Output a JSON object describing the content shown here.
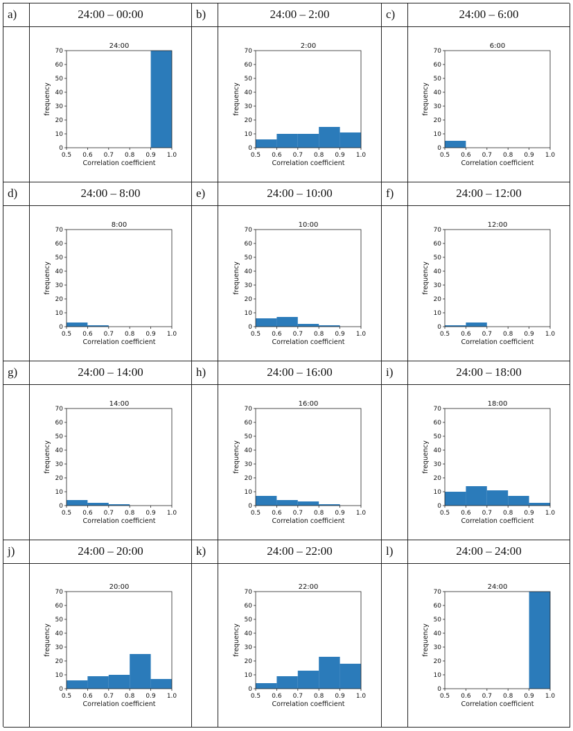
{
  "colors": {
    "bar": "#2b7bba",
    "axis": "#222222"
  },
  "panels": [
    {
      "letter": "a)",
      "title": "24:00 – 00:00"
    },
    {
      "letter": "b)",
      "title": "24:00 – 2:00"
    },
    {
      "letter": "c)",
      "title": "24:00 – 6:00"
    },
    {
      "letter": "d)",
      "title": "24:00 – 8:00"
    },
    {
      "letter": "e)",
      "title": "24:00 – 10:00"
    },
    {
      "letter": "f)",
      "title": "24:00 – 12:00"
    },
    {
      "letter": "g)",
      "title": "24:00 – 14:00"
    },
    {
      "letter": "h)",
      "title": "24:00 – 16:00"
    },
    {
      "letter": "i)",
      "title": "24:00 – 18:00"
    },
    {
      "letter": "j)",
      "title": "24:00 – 20:00"
    },
    {
      "letter": "k)",
      "title": "24:00 – 22:00"
    },
    {
      "letter": "l)",
      "title": "24:00 – 24:00"
    }
  ],
  "chart_data": [
    {
      "type": "bar",
      "title": "24:00",
      "xlabel": "Correlation coefficient",
      "ylabel": "frequency",
      "categories": [
        "0.5-0.6",
        "0.6-0.7",
        "0.7-0.8",
        "0.8-0.9",
        "0.9-1.0"
      ],
      "values": [
        0,
        0,
        0,
        0,
        70
      ],
      "xlim": [
        0.5,
        1.0
      ],
      "ylim": [
        0,
        70
      ],
      "xticks": [
        "0.5",
        "0.6",
        "0.7",
        "0.8",
        "0.9",
        "1.0"
      ],
      "yticks": [
        "0",
        "10",
        "20",
        "30",
        "40",
        "50",
        "60",
        "70"
      ]
    },
    {
      "type": "bar",
      "title": "2:00",
      "xlabel": "Correlation coefficient",
      "ylabel": "frequency",
      "categories": [
        "0.5-0.6",
        "0.6-0.7",
        "0.7-0.8",
        "0.8-0.9",
        "0.9-1.0"
      ],
      "values": [
        6,
        10,
        10,
        15,
        11
      ],
      "xlim": [
        0.5,
        1.0
      ],
      "ylim": [
        0,
        70
      ],
      "xticks": [
        "0.5",
        "0.6",
        "0.7",
        "0.8",
        "0.9",
        "1.0"
      ],
      "yticks": [
        "0",
        "10",
        "20",
        "30",
        "40",
        "50",
        "60",
        "70"
      ]
    },
    {
      "type": "bar",
      "title": "6:00",
      "xlabel": "Correlation coefficient",
      "ylabel": "frequency",
      "categories": [
        "0.5-0.6",
        "0.6-0.7",
        "0.7-0.8",
        "0.8-0.9",
        "0.9-1.0"
      ],
      "values": [
        5,
        0,
        0,
        0,
        0
      ],
      "xlim": [
        0.5,
        1.0
      ],
      "ylim": [
        0,
        70
      ],
      "xticks": [
        "0.5",
        "0.6",
        "0.7",
        "0.8",
        "0.9",
        "1.0"
      ],
      "yticks": [
        "0",
        "10",
        "20",
        "30",
        "40",
        "50",
        "60",
        "70"
      ]
    },
    {
      "type": "bar",
      "title": "8:00",
      "xlabel": "Correlation coefficient",
      "ylabel": "frequency",
      "categories": [
        "0.5-0.6",
        "0.6-0.7",
        "0.7-0.8",
        "0.8-0.9",
        "0.9-1.0"
      ],
      "values": [
        3,
        1,
        0,
        0,
        0
      ],
      "xlim": [
        0.5,
        1.0
      ],
      "ylim": [
        0,
        70
      ],
      "xticks": [
        "0.5",
        "0.6",
        "0.7",
        "0.8",
        "0.9",
        "1.0"
      ],
      "yticks": [
        "0",
        "10",
        "20",
        "30",
        "40",
        "50",
        "60",
        "70"
      ]
    },
    {
      "type": "bar",
      "title": "10:00",
      "xlabel": "Correlation coefficient",
      "ylabel": "frequency",
      "categories": [
        "0.5-0.6",
        "0.6-0.7",
        "0.7-0.8",
        "0.8-0.9",
        "0.9-1.0"
      ],
      "values": [
        6,
        7,
        2,
        1,
        0
      ],
      "xlim": [
        0.5,
        1.0
      ],
      "ylim": [
        0,
        70
      ],
      "xticks": [
        "0.5",
        "0.6",
        "0.7",
        "0.8",
        "0.9",
        "1.0"
      ],
      "yticks": [
        "0",
        "10",
        "20",
        "30",
        "40",
        "50",
        "60",
        "70"
      ]
    },
    {
      "type": "bar",
      "title": "12:00",
      "xlabel": "Correlation coefficient",
      "ylabel": "frequency",
      "categories": [
        "0.5-0.6",
        "0.6-0.7",
        "0.7-0.8",
        "0.8-0.9",
        "0.9-1.0"
      ],
      "values": [
        1,
        3,
        0,
        0,
        0
      ],
      "xlim": [
        0.5,
        1.0
      ],
      "ylim": [
        0,
        70
      ],
      "xticks": [
        "0.5",
        "0.6",
        "0.7",
        "0.8",
        "0.9",
        "1.0"
      ],
      "yticks": [
        "0",
        "10",
        "20",
        "30",
        "40",
        "50",
        "60",
        "70"
      ]
    },
    {
      "type": "bar",
      "title": "14:00",
      "xlabel": "Correlation coefficient",
      "ylabel": "frequency",
      "categories": [
        "0.5-0.6",
        "0.6-0.7",
        "0.7-0.8",
        "0.8-0.9",
        "0.9-1.0"
      ],
      "values": [
        4,
        2,
        1,
        0,
        0
      ],
      "xlim": [
        0.5,
        1.0
      ],
      "ylim": [
        0,
        70
      ],
      "xticks": [
        "0.5",
        "0.6",
        "0.7",
        "0.8",
        "0.9",
        "1.0"
      ],
      "yticks": [
        "0",
        "10",
        "20",
        "30",
        "40",
        "50",
        "60",
        "70"
      ]
    },
    {
      "type": "bar",
      "title": "16:00",
      "xlabel": "Correlation coefficient",
      "ylabel": "frequency",
      "categories": [
        "0.5-0.6",
        "0.6-0.7",
        "0.7-0.8",
        "0.8-0.9",
        "0.9-1.0"
      ],
      "values": [
        7,
        4,
        3,
        1,
        0
      ],
      "xlim": [
        0.5,
        1.0
      ],
      "ylim": [
        0,
        70
      ],
      "xticks": [
        "0.5",
        "0.6",
        "0.7",
        "0.8",
        "0.9",
        "1.0"
      ],
      "yticks": [
        "0",
        "10",
        "20",
        "30",
        "40",
        "50",
        "60",
        "70"
      ]
    },
    {
      "type": "bar",
      "title": "18:00",
      "xlabel": "Correlation coefficient",
      "ylabel": "frequency",
      "categories": [
        "0.5-0.6",
        "0.6-0.7",
        "0.7-0.8",
        "0.8-0.9",
        "0.9-1.0"
      ],
      "values": [
        10,
        14,
        11,
        7,
        2
      ],
      "xlim": [
        0.5,
        1.0
      ],
      "ylim": [
        0,
        70
      ],
      "xticks": [
        "0.5",
        "0.6",
        "0.7",
        "0.8",
        "0.9",
        "1.0"
      ],
      "yticks": [
        "0",
        "10",
        "20",
        "30",
        "40",
        "50",
        "60",
        "70"
      ]
    },
    {
      "type": "bar",
      "title": "20:00",
      "xlabel": "Correlation coefficient",
      "ylabel": "frequency",
      "categories": [
        "0.5-0.6",
        "0.6-0.7",
        "0.7-0.8",
        "0.8-0.9",
        "0.9-1.0"
      ],
      "values": [
        6,
        9,
        10,
        25,
        7
      ],
      "xlim": [
        0.5,
        1.0
      ],
      "ylim": [
        0,
        70
      ],
      "xticks": [
        "0.5",
        "0.6",
        "0.7",
        "0.8",
        "0.9",
        "1.0"
      ],
      "yticks": [
        "0",
        "10",
        "20",
        "30",
        "40",
        "50",
        "60",
        "70"
      ]
    },
    {
      "type": "bar",
      "title": "22:00",
      "xlabel": "Correlation coefficient",
      "ylabel": "frequency",
      "categories": [
        "0.5-0.6",
        "0.6-0.7",
        "0.7-0.8",
        "0.8-0.9",
        "0.9-1.0"
      ],
      "values": [
        4,
        9,
        13,
        23,
        18
      ],
      "xlim": [
        0.5,
        1.0
      ],
      "ylim": [
        0,
        70
      ],
      "xticks": [
        "0.5",
        "0.6",
        "0.7",
        "0.8",
        "0.9",
        "1.0"
      ],
      "yticks": [
        "0",
        "10",
        "20",
        "30",
        "40",
        "50",
        "60",
        "70"
      ]
    },
    {
      "type": "bar",
      "title": "24:00",
      "xlabel": "Correlation coefficient",
      "ylabel": "frequency",
      "categories": [
        "0.5-0.6",
        "0.6-0.7",
        "0.7-0.8",
        "0.8-0.9",
        "0.9-1.0"
      ],
      "values": [
        0,
        0,
        0,
        0,
        70
      ],
      "xlim": [
        0.5,
        1.0
      ],
      "ylim": [
        0,
        70
      ],
      "xticks": [
        "0.5",
        "0.6",
        "0.7",
        "0.8",
        "0.9",
        "1.0"
      ],
      "yticks": [
        "0",
        "10",
        "20",
        "30",
        "40",
        "50",
        "60",
        "70"
      ]
    }
  ]
}
